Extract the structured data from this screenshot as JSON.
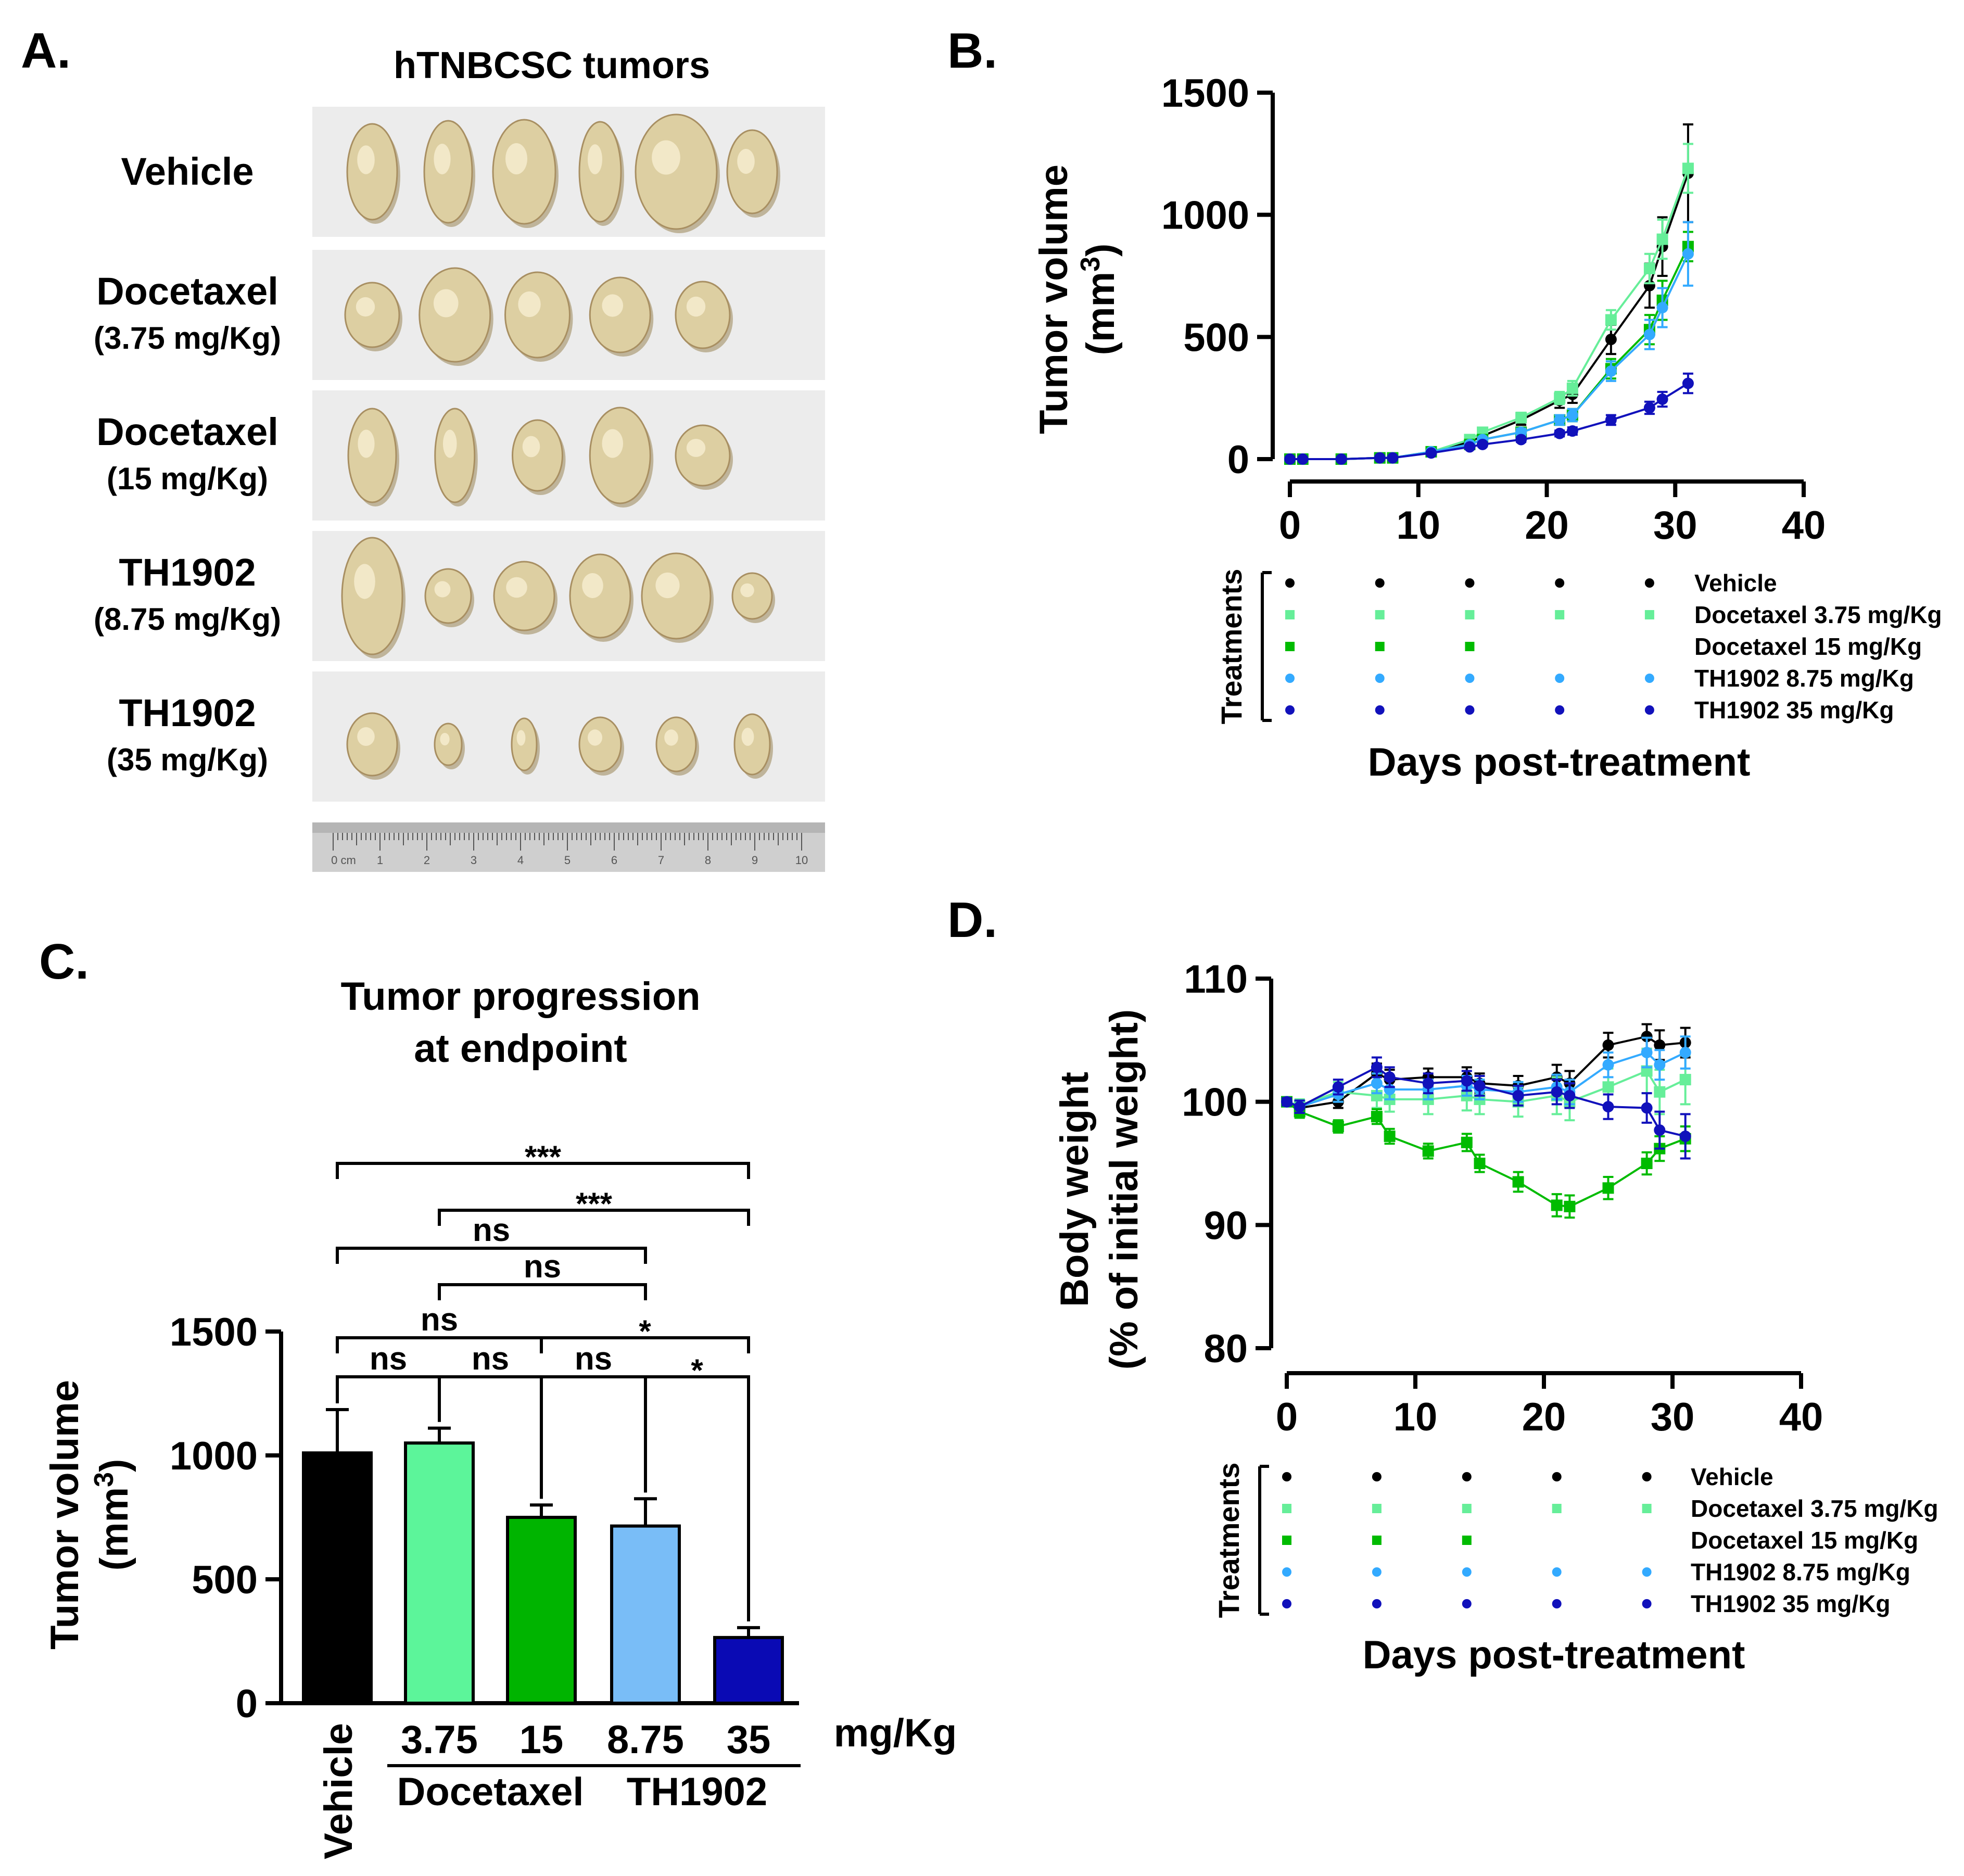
{
  "panels": {
    "a": "A.",
    "b": "B.",
    "c": "C.",
    "d": "D."
  },
  "panel_a": {
    "title": "hTNBCSC tumors",
    "rows": [
      {
        "name": "Vehicle",
        "dose": "",
        "tumor_count": 6
      },
      {
        "name": "Docetaxel",
        "dose": "(3.75 mg/Kg)",
        "tumor_count": 5
      },
      {
        "name": "Docetaxel",
        "dose": "(15 mg/Kg)",
        "tumor_count": 5
      },
      {
        "name": "TH1902",
        "dose": "(8.75 mg/Kg)",
        "tumor_count": 6
      },
      {
        "name": "TH1902",
        "dose": "(35 mg/Kg)",
        "tumor_count": 6
      }
    ],
    "ruler_labels": [
      "0 cm",
      "1",
      "2",
      "3",
      "4",
      "5",
      "6",
      "7",
      "8",
      "9",
      "10"
    ]
  },
  "legend": {
    "axis_label": "Treatments",
    "entries": [
      {
        "label": "Vehicle",
        "color": "#000000",
        "shape": "circle",
        "doses": 5
      },
      {
        "label": "Docetaxel 3.75 mg/Kg",
        "color": "#66ee99",
        "shape": "square",
        "doses": 5
      },
      {
        "label": "Docetaxel 15 mg/Kg",
        "color": "#00bb00",
        "shape": "square",
        "doses": 3
      },
      {
        "label": "TH1902 8.75 mg/Kg",
        "color": "#33aaff",
        "shape": "circle",
        "doses": 5
      },
      {
        "label": "TH1902 35 mg/Kg",
        "color": "#1111bb",
        "shape": "circle",
        "doses": 5
      }
    ]
  },
  "chart_data": [
    {
      "id": "B",
      "type": "line",
      "ylabel": "Tumor volume",
      "ylabel_unit": "(mm3)",
      "xlabel": "Days post-treatment",
      "xlim": [
        0,
        40
      ],
      "ylim": [
        0,
        1500
      ],
      "xticks": [
        0,
        10,
        20,
        30,
        40
      ],
      "yticks": [
        0,
        500,
        1000,
        1500
      ],
      "series": [
        {
          "name": "Vehicle",
          "color": "#000000",
          "shape": "circle",
          "x": [
            0,
            1,
            4,
            7,
            8,
            11,
            14,
            15,
            18,
            21,
            22,
            25,
            28,
            29,
            31
          ],
          "y": [
            0,
            0,
            0,
            5,
            5,
            30,
            70,
            95,
            160,
            240,
            265,
            490,
            710,
            870,
            1170
          ],
          "err": [
            0,
            0,
            0,
            2,
            2,
            5,
            10,
            15,
            20,
            30,
            35,
            60,
            90,
            120,
            200
          ]
        },
        {
          "name": "Docetaxel 3.75 mg/Kg",
          "color": "#66ee99",
          "shape": "square",
          "x": [
            0,
            1,
            4,
            7,
            8,
            11,
            14,
            15,
            18,
            21,
            22,
            25,
            28,
            29,
            31
          ],
          "y": [
            0,
            0,
            0,
            5,
            5,
            30,
            80,
            110,
            170,
            250,
            290,
            570,
            780,
            900,
            1190
          ],
          "err": [
            0,
            0,
            0,
            2,
            2,
            5,
            10,
            15,
            20,
            25,
            30,
            40,
            60,
            80,
            100
          ]
        },
        {
          "name": "Docetaxel 15 mg/Kg",
          "color": "#00bb00",
          "shape": "square",
          "x": [
            0,
            1,
            4,
            7,
            8,
            11,
            14,
            15,
            18,
            21,
            22,
            25,
            28,
            29,
            31
          ],
          "y": [
            0,
            0,
            0,
            5,
            5,
            30,
            60,
            80,
            110,
            160,
            180,
            370,
            530,
            650,
            870
          ],
          "err": [
            0,
            0,
            0,
            2,
            2,
            5,
            8,
            10,
            15,
            20,
            25,
            40,
            60,
            80,
            60
          ]
        },
        {
          "name": "TH1902 8.75 mg/Kg",
          "color": "#33aaff",
          "shape": "circle",
          "x": [
            0,
            1,
            4,
            7,
            8,
            11,
            14,
            15,
            18,
            21,
            22,
            25,
            28,
            29,
            31
          ],
          "y": [
            0,
            0,
            0,
            5,
            5,
            30,
            60,
            80,
            110,
            160,
            180,
            360,
            510,
            620,
            840
          ],
          "err": [
            0,
            0,
            0,
            2,
            2,
            5,
            8,
            10,
            15,
            20,
            25,
            40,
            60,
            80,
            130
          ]
        },
        {
          "name": "TH1902 35 mg/Kg",
          "color": "#1111bb",
          "shape": "circle",
          "x": [
            0,
            1,
            4,
            7,
            8,
            11,
            14,
            15,
            18,
            21,
            22,
            25,
            28,
            29,
            31
          ],
          "y": [
            0,
            0,
            0,
            5,
            5,
            25,
            50,
            60,
            80,
            105,
            115,
            160,
            210,
            245,
            310
          ],
          "err": [
            0,
            0,
            0,
            2,
            2,
            4,
            6,
            8,
            10,
            12,
            15,
            20,
            25,
            30,
            40
          ]
        }
      ],
      "dose_days": [
        0,
        7,
        14,
        21,
        28
      ]
    },
    {
      "id": "C",
      "type": "bar",
      "title": "Tumor progression",
      "title_line2": "at endpoint",
      "ylabel": "Tumor volume",
      "ylabel_unit": "(mm3)",
      "ylim": [
        0,
        1500
      ],
      "yticks": [
        0,
        500,
        1000,
        1500
      ],
      "categories": [
        "Vehicle",
        "3.75",
        "15",
        "8.75",
        "35"
      ],
      "values": [
        1010,
        1050,
        750,
        715,
        265
      ],
      "err": [
        175,
        60,
        50,
        110,
        40
      ],
      "colors": [
        "#000000",
        "#5cf59a",
        "#00b400",
        "#79bdf7",
        "#0a0ab4"
      ],
      "unit_label": "mg/Kg",
      "groups": [
        {
          "label": "Docetaxel",
          "from": 1,
          "to": 2
        },
        {
          "label": "TH1902",
          "from": 3,
          "to": 4
        }
      ],
      "significance": [
        {
          "from": 0,
          "to": 4,
          "label": "***"
        },
        {
          "from": 1,
          "to": 4,
          "label": "***"
        },
        {
          "from": 0,
          "to": 3,
          "label": "ns"
        },
        {
          "from": 1,
          "to": 3,
          "label": "ns"
        },
        {
          "from": 0,
          "to": 2,
          "label": "ns"
        },
        {
          "from": 2,
          "to": 4,
          "label": "*"
        },
        {
          "from": 0,
          "to": 1,
          "label": "ns"
        },
        {
          "from": 1,
          "to": 2,
          "label": "ns"
        },
        {
          "from": 2,
          "to": 3,
          "label": "ns"
        },
        {
          "from": 3,
          "to": 4,
          "label": "*"
        }
      ]
    },
    {
      "id": "D",
      "type": "line",
      "ylabel": "Body weight",
      "ylabel_line2": "(% of initial weight)",
      "xlabel": "Days post-treatment",
      "xlim": [
        0,
        40
      ],
      "ylim": [
        80,
        110
      ],
      "xticks": [
        0,
        10,
        20,
        30,
        40
      ],
      "yticks": [
        80,
        90,
        100,
        110
      ],
      "series": [
        {
          "name": "Vehicle",
          "color": "#000000",
          "shape": "circle",
          "x": [
            0,
            1,
            4,
            7,
            8,
            11,
            14,
            15,
            18,
            21,
            22,
            25,
            28,
            29,
            31
          ],
          "y": [
            100,
            99.5,
            100,
            102.3,
            101.8,
            102,
            102,
            101.5,
            101.3,
            102,
            101.5,
            104.6,
            105.3,
            104.6,
            104.8
          ],
          "err": [
            0.3,
            0.5,
            0.5,
            0.8,
            0.8,
            0.7,
            0.8,
            0.8,
            0.8,
            1.0,
            1.0,
            1.0,
            1.0,
            1.2,
            1.2
          ]
        },
        {
          "name": "Docetaxel 3.75 mg/Kg",
          "color": "#66ee99",
          "shape": "square",
          "x": [
            0,
            1,
            4,
            7,
            8,
            11,
            14,
            15,
            18,
            21,
            22,
            25,
            28,
            29,
            31
          ],
          "y": [
            100,
            99.7,
            100.8,
            100.5,
            100.2,
            100.2,
            100.5,
            100.2,
            100,
            100.5,
            100,
            101.2,
            102.5,
            100.8,
            101.8
          ],
          "err": [
            0.3,
            0.5,
            0.8,
            1.0,
            1.0,
            1.2,
            1.2,
            1.2,
            1.2,
            1.5,
            1.5,
            1.5,
            1.8,
            1.8,
            2.0
          ]
        },
        {
          "name": "Docetaxel 15 mg/Kg",
          "color": "#00bb00",
          "shape": "square",
          "x": [
            0,
            1,
            4,
            7,
            8,
            11,
            14,
            15,
            18,
            21,
            22,
            25,
            28,
            29,
            31
          ],
          "y": [
            100,
            99.2,
            98,
            98.8,
            97.2,
            96,
            96.7,
            95,
            93.5,
            91.6,
            91.5,
            93,
            95,
            96.2,
            97
          ],
          "err": [
            0.3,
            0.5,
            0.5,
            0.6,
            0.6,
            0.6,
            0.7,
            0.7,
            0.8,
            0.9,
            0.9,
            0.9,
            0.9,
            1.0,
            1.0
          ]
        },
        {
          "name": "TH1902 8.75 mg/Kg",
          "color": "#33aaff",
          "shape": "circle",
          "x": [
            0,
            1,
            4,
            7,
            8,
            11,
            14,
            15,
            18,
            21,
            22,
            25,
            28,
            29,
            31
          ],
          "y": [
            100,
            99.6,
            100.6,
            101.5,
            101,
            101,
            101.3,
            101,
            100.8,
            101.2,
            100.8,
            103,
            104,
            103,
            104
          ],
          "err": [
            0.3,
            0.5,
            0.6,
            0.8,
            0.8,
            0.8,
            0.8,
            0.8,
            0.8,
            1.0,
            1.0,
            1.0,
            1.2,
            1.2,
            1.3
          ]
        },
        {
          "name": "TH1902 35 mg/Kg",
          "color": "#1111bb",
          "shape": "circle",
          "x": [
            0,
            1,
            4,
            7,
            8,
            11,
            14,
            15,
            18,
            21,
            22,
            25,
            28,
            29,
            31
          ],
          "y": [
            100,
            99.6,
            101.2,
            102.8,
            102,
            101.5,
            101.7,
            101.3,
            100.5,
            100.8,
            100.5,
            99.6,
            99.5,
            97.7,
            97.2
          ],
          "err": [
            0.3,
            0.5,
            0.6,
            0.8,
            0.8,
            0.8,
            0.8,
            0.8,
            0.8,
            1.0,
            1.0,
            1.0,
            1.2,
            1.5,
            1.8
          ]
        }
      ],
      "dose_days": [
        0,
        7,
        14,
        21,
        28
      ]
    }
  ]
}
